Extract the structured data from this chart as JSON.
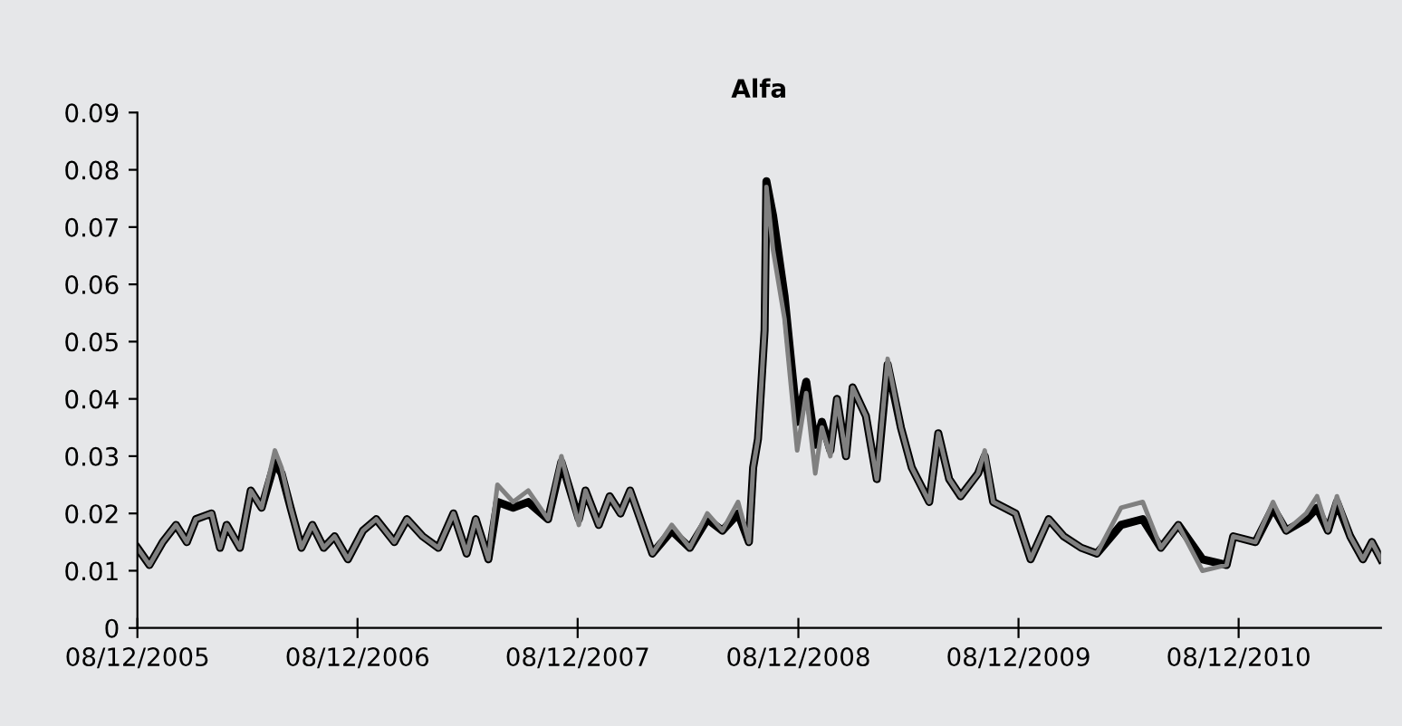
{
  "chart_data": {
    "type": "line",
    "title": "Alfa",
    "x": [
      "2005-12-08",
      "2005-12-28",
      "2006-01-19",
      "2006-02-10",
      "2006-02-28",
      "2006-03-15",
      "2006-04-10",
      "2006-04-24",
      "2006-05-05",
      "2006-05-27",
      "2006-06-14",
      "2006-07-02",
      "2006-07-24",
      "2006-08-04",
      "2006-08-19",
      "2006-09-06",
      "2006-09-24",
      "2006-10-13",
      "2006-10-31",
      "2006-11-22",
      "2006-12-17",
      "2007-01-08",
      "2007-02-07",
      "2007-02-28",
      "2007-03-26",
      "2007-04-21",
      "2007-05-16",
      "2007-06-07",
      "2007-06-22",
      "2007-07-13",
      "2007-07-28",
      "2007-08-23",
      "2007-09-17",
      "2007-10-20",
      "2007-11-11",
      "2007-12-10",
      "2007-12-21",
      "2008-01-12",
      "2008-01-30",
      "2008-02-17",
      "2008-03-04",
      "2008-04-10",
      "2008-05-12",
      "2008-06-11",
      "2008-07-10",
      "2008-08-04",
      "2008-08-30",
      "2008-09-17",
      "2008-09-24",
      "2008-10-02",
      "2008-10-13",
      "2008-10-16",
      "2008-10-27",
      "2008-11-15",
      "2008-12-06",
      "2008-12-21",
      "2009-01-05",
      "2009-01-16",
      "2009-01-30",
      "2009-02-10",
      "2009-02-25",
      "2009-03-08",
      "2009-03-30",
      "2009-04-17",
      "2009-05-05",
      "2009-05-27",
      "2009-06-14",
      "2009-07-13",
      "2009-07-28",
      "2009-08-15",
      "2009-09-03",
      "2009-10-02",
      "2009-10-13",
      "2009-10-27",
      "2009-12-03",
      "2009-12-28",
      "2010-01-27",
      "2010-02-21",
      "2010-03-22",
      "2010-04-17",
      "2010-05-27",
      "2010-07-02",
      "2010-08-01",
      "2010-08-30",
      "2010-10-09",
      "2010-11-18",
      "2010-11-29",
      "2011-01-05",
      "2011-02-03",
      "2011-02-25",
      "2011-03-30",
      "2011-04-17",
      "2011-05-05",
      "2011-05-20",
      "2011-06-11",
      "2011-07-02",
      "2011-07-17",
      "2011-08-01"
    ],
    "series": [
      {
        "color": "#000000",
        "values": [
          0.014,
          0.011,
          0.015,
          0.018,
          0.015,
          0.019,
          0.02,
          0.014,
          0.018,
          0.014,
          0.024,
          0.021,
          0.029,
          0.027,
          0.021,
          0.014,
          0.018,
          0.014,
          0.016,
          0.012,
          0.017,
          0.019,
          0.015,
          0.019,
          0.016,
          0.014,
          0.02,
          0.013,
          0.019,
          0.012,
          0.022,
          0.021,
          0.022,
          0.019,
          0.029,
          0.019,
          0.024,
          0.018,
          0.023,
          0.02,
          0.024,
          0.013,
          0.017,
          0.014,
          0.019,
          0.017,
          0.02,
          0.015,
          0.028,
          0.033,
          0.052,
          0.078,
          0.072,
          0.058,
          0.036,
          0.043,
          0.032,
          0.036,
          0.031,
          0.04,
          0.03,
          0.042,
          0.037,
          0.026,
          0.046,
          0.035,
          0.028,
          0.022,
          0.034,
          0.026,
          0.023,
          0.027,
          0.03,
          0.022,
          0.02,
          0.012,
          0.019,
          0.016,
          0.014,
          0.013,
          0.018,
          0.019,
          0.014,
          0.018,
          0.012,
          0.011,
          0.016,
          0.015,
          0.021,
          0.017,
          0.019,
          0.021,
          0.017,
          0.022,
          0.016,
          0.012,
          0.015,
          0.012
        ]
      },
      {
        "color": "#808080",
        "values": [
          0.014,
          0.011,
          0.015,
          0.018,
          0.015,
          0.019,
          0.02,
          0.014,
          0.018,
          0.014,
          0.024,
          0.021,
          0.031,
          0.028,
          0.021,
          0.014,
          0.018,
          0.014,
          0.016,
          0.012,
          0.017,
          0.019,
          0.015,
          0.019,
          0.016,
          0.014,
          0.02,
          0.013,
          0.019,
          0.012,
          0.025,
          0.022,
          0.024,
          0.019,
          0.03,
          0.018,
          0.024,
          0.018,
          0.023,
          0.02,
          0.024,
          0.013,
          0.018,
          0.014,
          0.02,
          0.017,
          0.022,
          0.015,
          0.028,
          0.033,
          0.052,
          0.077,
          0.066,
          0.054,
          0.031,
          0.041,
          0.027,
          0.035,
          0.03,
          0.04,
          0.03,
          0.042,
          0.037,
          0.026,
          0.047,
          0.035,
          0.028,
          0.022,
          0.034,
          0.026,
          0.023,
          0.027,
          0.031,
          0.022,
          0.02,
          0.012,
          0.019,
          0.016,
          0.014,
          0.013,
          0.021,
          0.022,
          0.014,
          0.018,
          0.01,
          0.011,
          0.016,
          0.015,
          0.022,
          0.017,
          0.02,
          0.023,
          0.017,
          0.023,
          0.016,
          0.012,
          0.015,
          0.012
        ]
      }
    ],
    "xlim": [
      "2005-12-08",
      "2011-08-01"
    ],
    "xticks": [
      {
        "value": "2005-12-08",
        "label": "08/12/2005"
      },
      {
        "value": "2006-12-08",
        "label": "08/12/2006"
      },
      {
        "value": "2007-12-08",
        "label": "08/12/2007"
      },
      {
        "value": "2008-12-08",
        "label": "08/12/2008"
      },
      {
        "value": "2009-12-08",
        "label": "08/12/2009"
      },
      {
        "value": "2010-12-08",
        "label": "08/12/2010"
      }
    ],
    "ylim": [
      0,
      0.09
    ],
    "yticks": [
      {
        "value": 0,
        "label": "0"
      },
      {
        "value": 0.01,
        "label": "0.01"
      },
      {
        "value": 0.02,
        "label": "0.02"
      },
      {
        "value": 0.03,
        "label": "0.03"
      },
      {
        "value": 0.04,
        "label": "0.04"
      },
      {
        "value": 0.05,
        "label": "0.05"
      },
      {
        "value": 0.06,
        "label": "0.06"
      },
      {
        "value": 0.07,
        "label": "0.07"
      },
      {
        "value": 0.08,
        "label": "0.08"
      },
      {
        "value": 0.09,
        "label": "0.09"
      }
    ],
    "grid": false,
    "legend": false
  }
}
